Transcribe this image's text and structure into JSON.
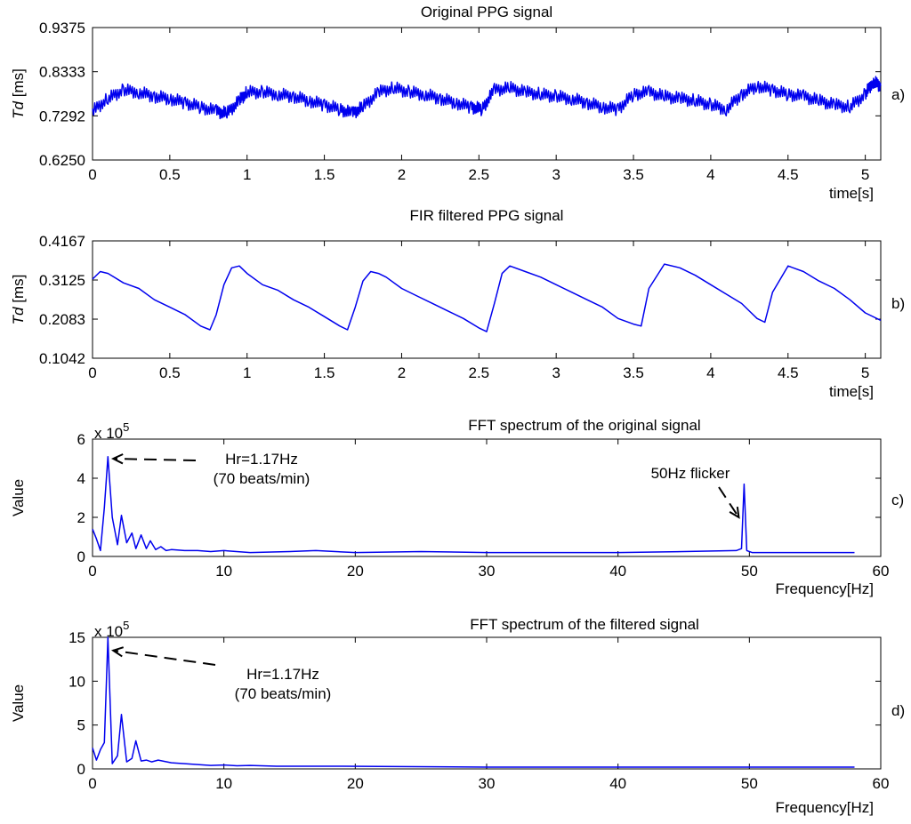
{
  "colors": {
    "series": "#0000ee",
    "axis": "#000000",
    "background": "#ffffff"
  },
  "chart_data": [
    {
      "id": "a",
      "type": "line",
      "title": "Original PPG signal",
      "panel_label": "a)",
      "xlabel": "time[s]",
      "ylabel_italic": "Td",
      "ylabel_rest": " [ms]",
      "xlim": [
        0,
        5.1
      ],
      "ylim": [
        0.625,
        0.9375
      ],
      "x_ticks": [
        0,
        0.5,
        1,
        1.5,
        2,
        2.5,
        3,
        3.5,
        4,
        4.5,
        5
      ],
      "x_tick_labels": [
        "0",
        "0.5",
        "1",
        "1.5",
        "2",
        "2.5",
        "3",
        "3.5",
        "4",
        "4.5",
        "5"
      ],
      "y_ticks": [
        0.625,
        0.7292,
        0.8333,
        0.9375
      ],
      "y_tick_labels": [
        "0.6250",
        "0.7292",
        "0.8333",
        "0.9375"
      ],
      "grid": false,
      "series": [
        {
          "x": [
            0,
            0.1,
            0.2,
            0.3,
            0.4,
            0.5,
            0.6,
            0.7,
            0.8,
            0.87,
            0.95,
            1.0,
            1.1,
            1.2,
            1.3,
            1.4,
            1.5,
            1.6,
            1.68,
            1.75,
            1.85,
            1.95,
            2.05,
            2.15,
            2.25,
            2.35,
            2.45,
            2.52,
            2.6,
            2.7,
            2.8,
            2.9,
            3.0,
            3.1,
            3.2,
            3.3,
            3.4,
            3.5,
            3.6,
            3.7,
            3.8,
            3.9,
            4.0,
            4.1,
            4.2,
            4.3,
            4.4,
            4.5,
            4.6,
            4.7,
            4.8,
            4.9,
            5.0,
            5.05,
            5.1
          ],
          "y": [
            0.74,
            0.77,
            0.79,
            0.785,
            0.775,
            0.77,
            0.76,
            0.75,
            0.74,
            0.735,
            0.765,
            0.785,
            0.785,
            0.78,
            0.775,
            0.765,
            0.755,
            0.745,
            0.735,
            0.75,
            0.785,
            0.795,
            0.785,
            0.78,
            0.77,
            0.76,
            0.75,
            0.745,
            0.79,
            0.795,
            0.785,
            0.78,
            0.775,
            0.77,
            0.76,
            0.75,
            0.745,
            0.78,
            0.785,
            0.775,
            0.77,
            0.765,
            0.755,
            0.745,
            0.78,
            0.8,
            0.79,
            0.78,
            0.775,
            0.765,
            0.755,
            0.75,
            0.78,
            0.81,
            0.8
          ]
        }
      ]
    },
    {
      "id": "b",
      "type": "line",
      "title": "FIR filtered PPG signal",
      "panel_label": "b)",
      "xlabel": "time[s]",
      "ylabel_italic": "Td",
      "ylabel_rest": " [ms]",
      "xlim": [
        0,
        5.1
      ],
      "ylim": [
        0.1042,
        0.4167
      ],
      "x_ticks": [
        0,
        0.5,
        1,
        1.5,
        2,
        2.5,
        3,
        3.5,
        4,
        4.5,
        5
      ],
      "x_tick_labels": [
        "0",
        "0.5",
        "1",
        "1.5",
        "2",
        "2.5",
        "3",
        "3.5",
        "4",
        "4.5",
        "5"
      ],
      "y_ticks": [
        0.1042,
        0.2083,
        0.3125,
        0.4167
      ],
      "y_tick_labels": [
        "0.1042",
        "0.2083",
        "0.3125",
        "0.4167"
      ],
      "grid": false,
      "series": [
        {
          "x": [
            0,
            0.05,
            0.1,
            0.2,
            0.3,
            0.4,
            0.5,
            0.6,
            0.7,
            0.76,
            0.8,
            0.85,
            0.9,
            0.95,
            1.0,
            1.1,
            1.2,
            1.3,
            1.4,
            1.5,
            1.6,
            1.65,
            1.7,
            1.75,
            1.8,
            1.85,
            1.9,
            2.0,
            2.1,
            2.2,
            2.3,
            2.4,
            2.5,
            2.55,
            2.6,
            2.65,
            2.7,
            2.8,
            2.9,
            3.0,
            3.1,
            3.2,
            3.3,
            3.4,
            3.5,
            3.55,
            3.6,
            3.7,
            3.8,
            3.9,
            4.0,
            4.1,
            4.2,
            4.25,
            4.3,
            4.35,
            4.4,
            4.5,
            4.6,
            4.7,
            4.8,
            4.9,
            5.0,
            5.1
          ],
          "y": [
            0.315,
            0.335,
            0.33,
            0.305,
            0.29,
            0.26,
            0.24,
            0.22,
            0.19,
            0.18,
            0.22,
            0.3,
            0.345,
            0.35,
            0.33,
            0.3,
            0.285,
            0.26,
            0.24,
            0.215,
            0.19,
            0.18,
            0.24,
            0.31,
            0.335,
            0.33,
            0.32,
            0.29,
            0.27,
            0.25,
            0.23,
            0.21,
            0.185,
            0.175,
            0.25,
            0.33,
            0.35,
            0.335,
            0.32,
            0.3,
            0.28,
            0.26,
            0.24,
            0.21,
            0.195,
            0.19,
            0.29,
            0.355,
            0.345,
            0.325,
            0.3,
            0.275,
            0.25,
            0.23,
            0.21,
            0.2,
            0.28,
            0.35,
            0.335,
            0.31,
            0.29,
            0.26,
            0.225,
            0.205
          ]
        }
      ]
    },
    {
      "id": "c",
      "type": "line",
      "title": "FFT spectrum of the original signal",
      "panel_label": "c)",
      "xlabel": "Frequency[Hz]",
      "ylabel": "Value",
      "y_multiplier_base": "x 10",
      "y_multiplier_exp": "5",
      "xlim": [
        0,
        60
      ],
      "ylim": [
        0,
        6
      ],
      "x_ticks": [
        0,
        10,
        20,
        30,
        40,
        50,
        60
      ],
      "x_tick_labels": [
        "0",
        "10",
        "20",
        "30",
        "40",
        "50",
        "60"
      ],
      "y_ticks": [
        0,
        2,
        4,
        6
      ],
      "y_tick_labels": [
        "0",
        "2",
        "4",
        "6"
      ],
      "grid": false,
      "annotations": [
        {
          "lines": [
            "Hr=1.17Hz",
            "(70 beats/min)"
          ],
          "x": 1.17,
          "y": 5.0
        },
        {
          "lines": [
            "50Hz flicker"
          ],
          "x": 49.6,
          "y": 2.0
        }
      ],
      "series": [
        {
          "x": [
            0,
            0.3,
            0.6,
            0.9,
            1.17,
            1.5,
            1.9,
            2.2,
            2.6,
            3.0,
            3.3,
            3.7,
            4.1,
            4.4,
            4.8,
            5.2,
            5.6,
            6.0,
            7.0,
            8.0,
            9.0,
            10.0,
            12.0,
            15.0,
            17.0,
            20.0,
            25.0,
            30.0,
            35.0,
            40.0,
            45.0,
            49.0,
            49.4,
            49.6,
            49.8,
            50.2,
            55.0,
            58.0
          ],
          "y": [
            1.4,
            0.9,
            0.3,
            2.5,
            5.1,
            2.0,
            0.6,
            2.1,
            0.7,
            1.2,
            0.4,
            1.1,
            0.4,
            0.8,
            0.35,
            0.5,
            0.3,
            0.35,
            0.3,
            0.3,
            0.25,
            0.3,
            0.2,
            0.25,
            0.3,
            0.2,
            0.25,
            0.2,
            0.2,
            0.2,
            0.25,
            0.3,
            0.4,
            3.7,
            0.3,
            0.2,
            0.2,
            0.2
          ]
        }
      ]
    },
    {
      "id": "d",
      "type": "line",
      "title": "FFT spectrum of the filtered signal",
      "panel_label": "d)",
      "xlabel": "Frequency[Hz]",
      "ylabel": "Value",
      "y_multiplier_base": "x 10",
      "y_multiplier_exp": "5",
      "xlim": [
        0,
        60
      ],
      "ylim": [
        0,
        15
      ],
      "x_ticks": [
        0,
        10,
        20,
        30,
        40,
        50,
        60
      ],
      "x_tick_labels": [
        "0",
        "10",
        "20",
        "30",
        "40",
        "50",
        "60"
      ],
      "y_ticks": [
        0,
        5,
        10,
        15
      ],
      "y_tick_labels": [
        "0",
        "5",
        "10",
        "15"
      ],
      "grid": false,
      "annotations": [
        {
          "lines": [
            "Hr=1.17Hz",
            "(70 beats/min)"
          ],
          "x": 1.17,
          "y": 13.5
        }
      ],
      "series": [
        {
          "x": [
            0,
            0.3,
            0.6,
            0.9,
            1.17,
            1.5,
            1.9,
            2.2,
            2.6,
            3.0,
            3.3,
            3.7,
            4.1,
            4.5,
            5.0,
            6.0,
            7.0,
            8.0,
            9.0,
            10.0,
            11.0,
            12.0,
            14.0,
            19.0,
            30.0,
            40.0,
            50.0,
            58.0
          ],
          "y": [
            2.4,
            1.0,
            2.2,
            3.0,
            15.0,
            0.6,
            1.5,
            6.2,
            0.8,
            1.2,
            3.2,
            0.9,
            1.0,
            0.8,
            1.0,
            0.7,
            0.6,
            0.5,
            0.4,
            0.45,
            0.35,
            0.4,
            0.3,
            0.3,
            0.2,
            0.2,
            0.2,
            0.2
          ]
        }
      ]
    }
  ]
}
